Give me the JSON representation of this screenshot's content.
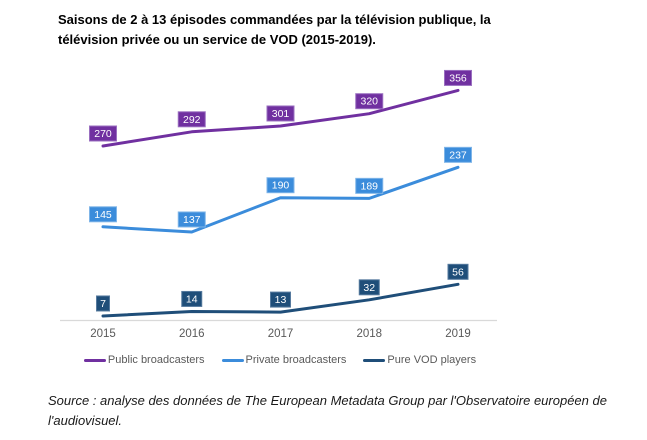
{
  "chart_data": {
    "type": "line",
    "title": "Saisons de 2 à 13 épisodes commandées par la télévision publique, la télévision privée ou un service de VOD (2015-2019).",
    "x": [
      "2015",
      "2016",
      "2017",
      "2018",
      "2019"
    ],
    "series": [
      {
        "name": "Public broadcasters",
        "color": "#7030A0",
        "label_border": "#9a6fc0",
        "values": [
          270,
          292,
          301,
          320,
          356
        ]
      },
      {
        "name": "Private broadcasters",
        "color": "#3B8CDB",
        "label_border": "#7fb5e8",
        "values": [
          145,
          137,
          190,
          189,
          237
        ]
      },
      {
        "name": "Pure VOD players",
        "color": "#1F4E79",
        "label_border": "#567a9e",
        "values": [
          7,
          14,
          13,
          32,
          56
        ]
      }
    ],
    "ylim": [
      0,
      400
    ],
    "grid": false,
    "data_labels": true,
    "legend_position": "bottom",
    "axis_line_color": "#d9d9d9",
    "tick_label_color": "#595959",
    "data_label_text_color": "#ffffff"
  },
  "source_note": "Source : analyse des données de The European Metadata Group par l'Observatoire européen de l'audiovisuel."
}
